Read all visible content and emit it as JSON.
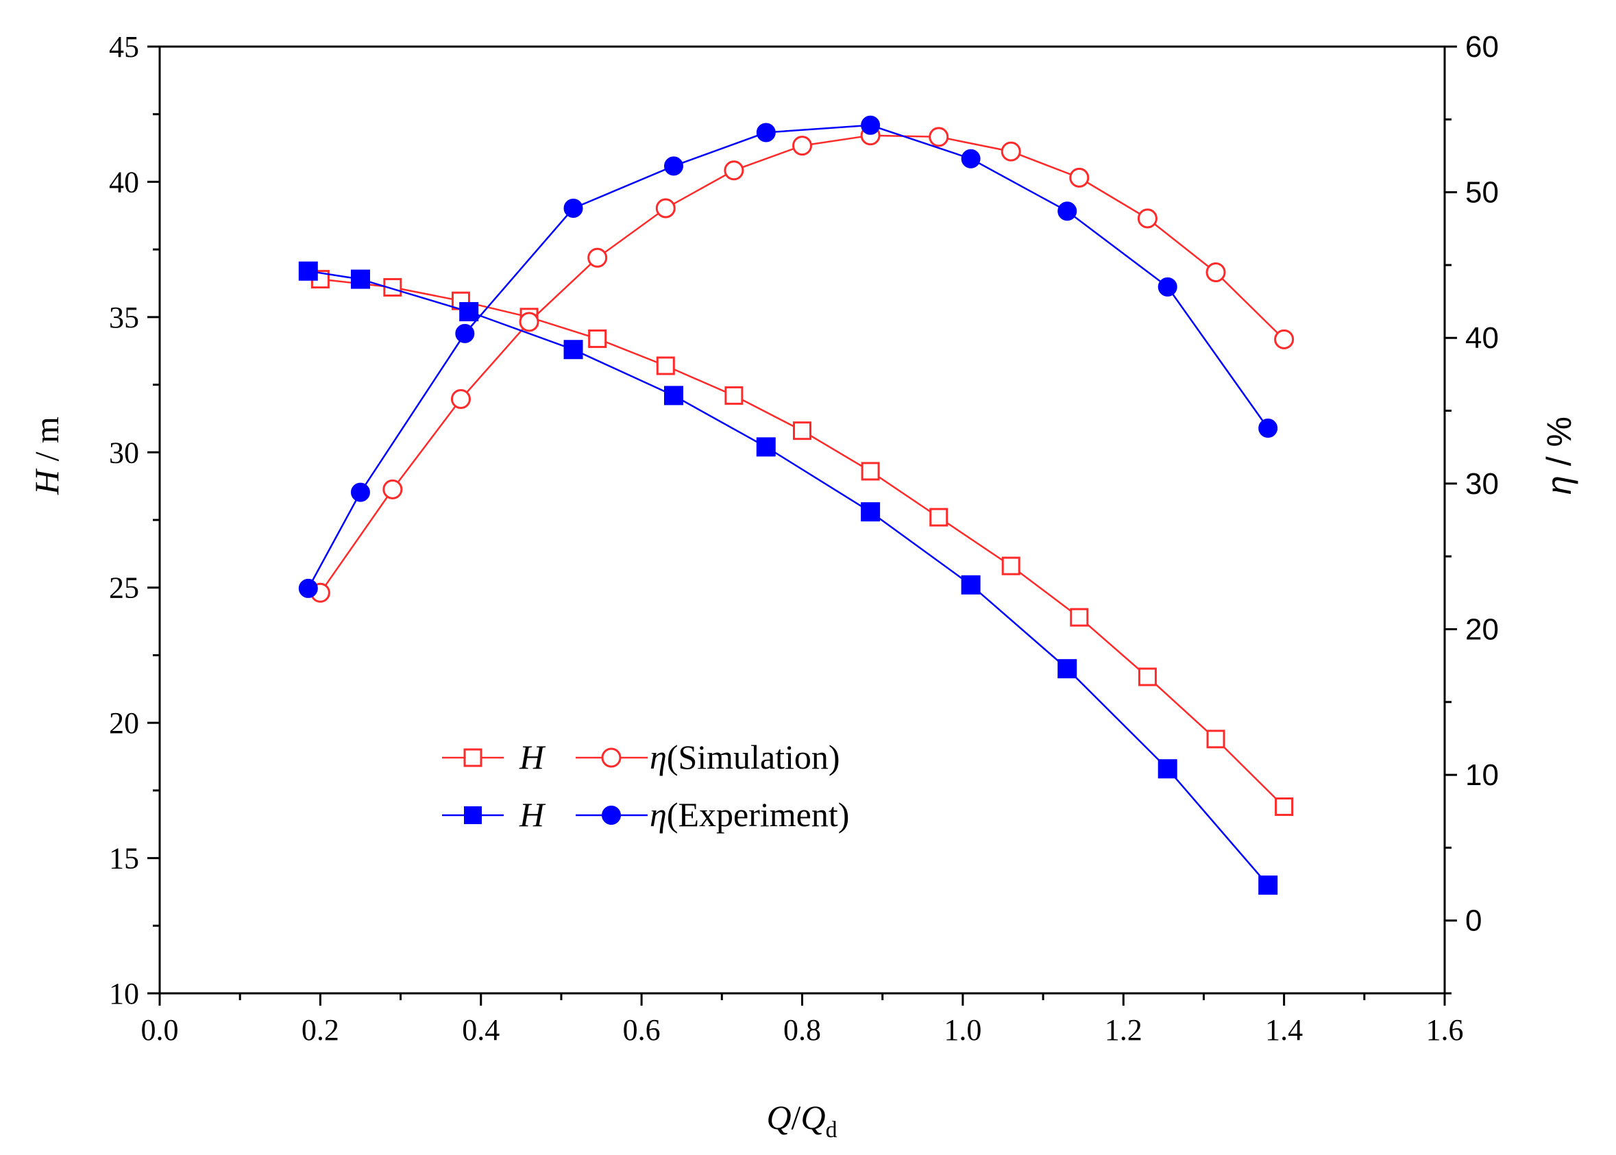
{
  "chart_data": {
    "type": "line",
    "x": {
      "label_main": "Q",
      "label_sep": "/",
      "label_den": "Q",
      "label_sub": "d",
      "lim": [
        0.0,
        1.6
      ],
      "major_ticks": [
        "0.0",
        "0.2",
        "0.4",
        "0.6",
        "0.8",
        "1.0",
        "1.2",
        "1.4",
        "1.6"
      ]
    },
    "y_left": {
      "label_var": "H",
      "label_unit": " / m",
      "lim": [
        10,
        45
      ],
      "major_ticks": [
        "10",
        "15",
        "20",
        "25",
        "30",
        "35",
        "40",
        "45"
      ]
    },
    "y_right": {
      "label_var": "η",
      "label_unit": " / %",
      "lim": [
        -5,
        60
      ],
      "major_ticks": [
        "0",
        "10",
        "20",
        "30",
        "40",
        "50",
        "60"
      ]
    },
    "series": [
      {
        "name": "H",
        "axis": "left",
        "color": "#ff2a2a",
        "marker": "square-open",
        "x": [
          0.2,
          0.29,
          0.375,
          0.46,
          0.545,
          0.63,
          0.715,
          0.8,
          0.885,
          0.97,
          1.06,
          1.145,
          1.23,
          1.315,
          1.4
        ],
        "y": [
          36.4,
          36.1,
          35.6,
          35.0,
          34.2,
          33.2,
          32.1,
          30.8,
          29.3,
          27.6,
          25.8,
          23.9,
          21.7,
          19.4,
          16.9
        ]
      },
      {
        "name": "η(Simulation)",
        "axis": "right",
        "color": "#ff2a2a",
        "marker": "circle-open",
        "x": [
          0.2,
          0.29,
          0.375,
          0.46,
          0.545,
          0.63,
          0.715,
          0.8,
          0.885,
          0.97,
          1.06,
          1.145,
          1.23,
          1.315,
          1.4
        ],
        "y": [
          22.5,
          29.6,
          35.8,
          41.1,
          45.5,
          48.9,
          51.5,
          53.2,
          53.9,
          53.8,
          52.8,
          51.0,
          48.2,
          44.5,
          39.9
        ]
      },
      {
        "name": "H",
        "axis": "left",
        "color": "#0000ff",
        "marker": "square-filled",
        "x": [
          0.185,
          0.25,
          0.385,
          0.515,
          0.64,
          0.755,
          0.885,
          1.01,
          1.13,
          1.255,
          1.38
        ],
        "y": [
          36.7,
          36.4,
          35.2,
          33.8,
          32.1,
          30.2,
          27.8,
          25.1,
          22.0,
          18.3,
          14.0
        ]
      },
      {
        "name": "η(Experiment)",
        "axis": "right",
        "color": "#0000ff",
        "marker": "circle-filled",
        "x": [
          0.185,
          0.25,
          0.38,
          0.515,
          0.64,
          0.755,
          0.885,
          1.01,
          1.13,
          1.255,
          1.38
        ],
        "y": [
          22.8,
          29.4,
          40.3,
          48.9,
          51.8,
          54.1,
          54.6,
          52.3,
          48.7,
          43.5,
          33.8
        ]
      }
    ],
    "legend": {
      "placement": "lower-center",
      "rows": [
        {
          "left_label": "H",
          "right_label_var": "η",
          "right_label_text": "(Simulation)"
        },
        {
          "left_label": "H",
          "right_label_var": "η",
          "right_label_text": "(Experiment)"
        }
      ]
    }
  }
}
